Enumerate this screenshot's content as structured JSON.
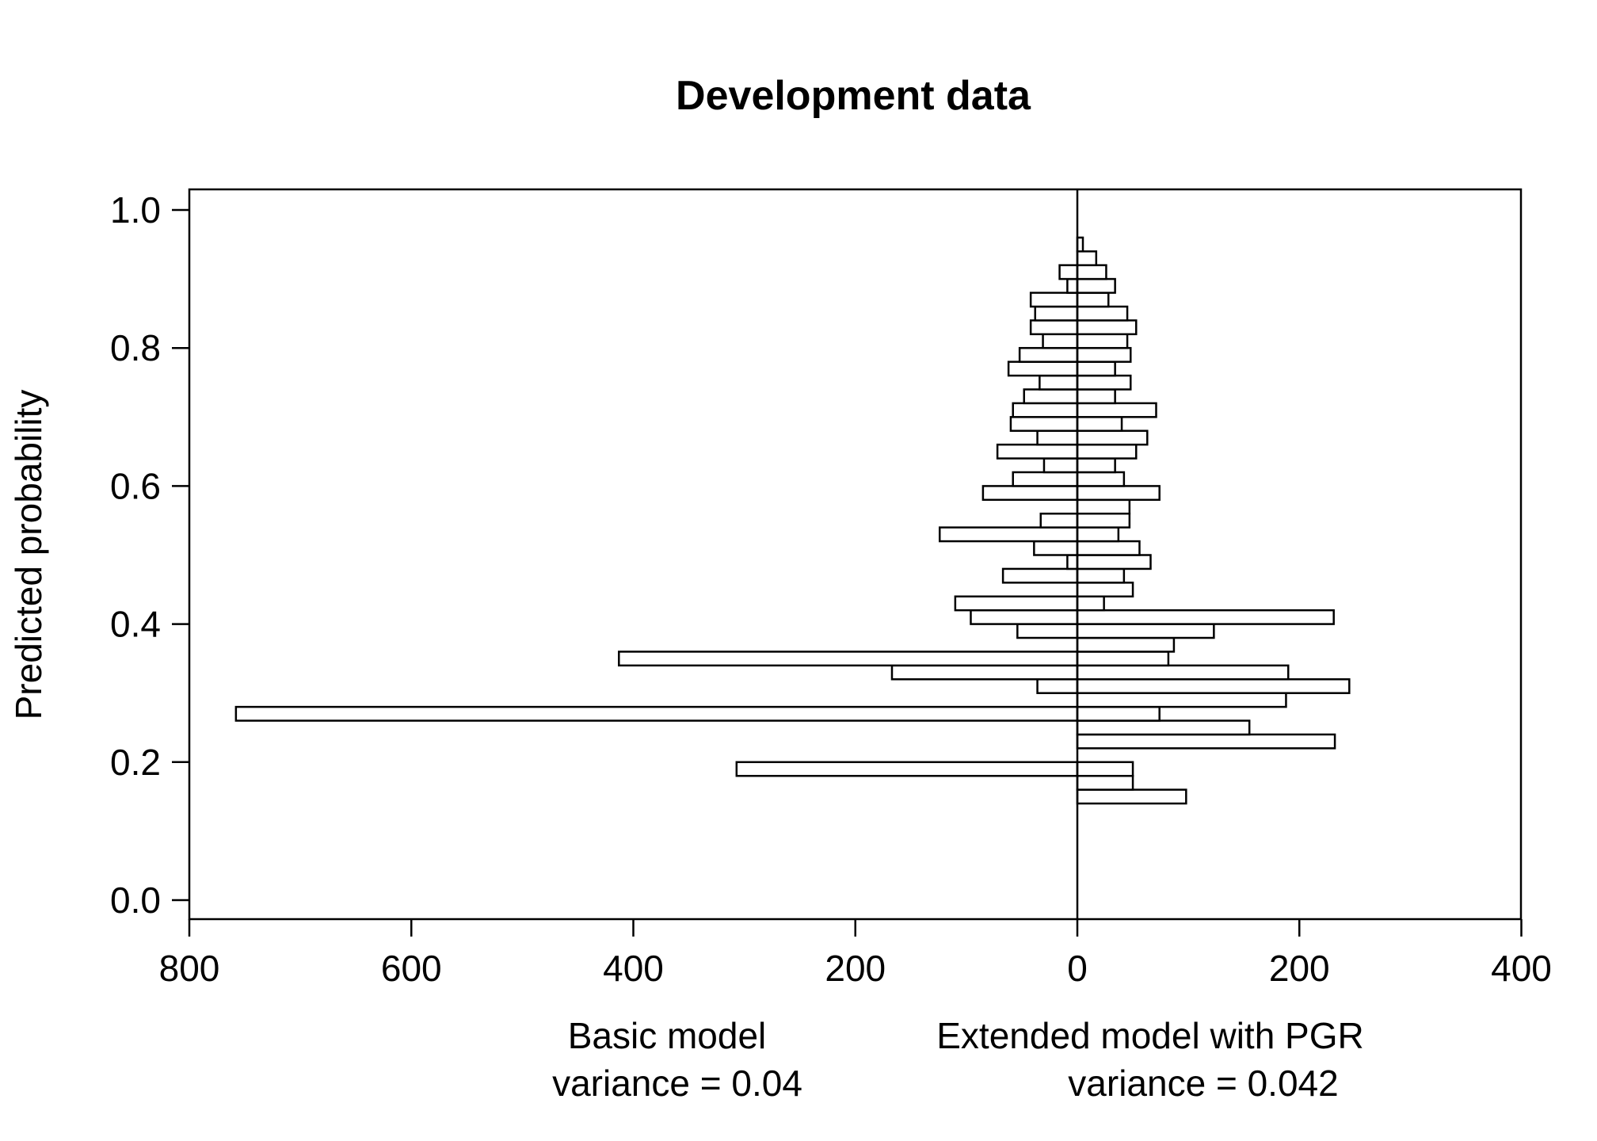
{
  "chart_data": {
    "type": "bar",
    "orientation": "back-to-back horizontal",
    "title": "Development data",
    "ylabel": "Predicted probability",
    "ylim": [
      0.0,
      1.0
    ],
    "y_ticks": [
      "0.0",
      "0.2",
      "0.4",
      "0.6",
      "0.8",
      "1.0"
    ],
    "x_ticks_left": [
      "800",
      "600",
      "400",
      "200",
      "0"
    ],
    "x_ticks_right": [
      "200",
      "400"
    ],
    "xlim_left": [
      0,
      800
    ],
    "xlim_right": [
      0,
      400
    ],
    "bin_width": 0.02,
    "left": {
      "label": "Basic model",
      "note": "variance = 0.04",
      "bins": [
        {
          "y0": 0.18,
          "value": 307
        },
        {
          "y0": 0.26,
          "value": 758
        },
        {
          "y0": 0.3,
          "value": 36
        },
        {
          "y0": 0.32,
          "value": 167
        },
        {
          "y0": 0.34,
          "value": 413
        },
        {
          "y0": 0.38,
          "value": 54
        },
        {
          "y0": 0.4,
          "value": 96
        },
        {
          "y0": 0.42,
          "value": 110
        },
        {
          "y0": 0.46,
          "value": 67
        },
        {
          "y0": 0.48,
          "value": 9
        },
        {
          "y0": 0.5,
          "value": 39
        },
        {
          "y0": 0.52,
          "value": 124
        },
        {
          "y0": 0.54,
          "value": 33
        },
        {
          "y0": 0.58,
          "value": 85
        },
        {
          "y0": 0.6,
          "value": 58
        },
        {
          "y0": 0.62,
          "value": 30
        },
        {
          "y0": 0.64,
          "value": 72
        },
        {
          "y0": 0.66,
          "value": 36
        },
        {
          "y0": 0.68,
          "value": 60
        },
        {
          "y0": 0.7,
          "value": 58
        },
        {
          "y0": 0.72,
          "value": 48
        },
        {
          "y0": 0.74,
          "value": 34
        },
        {
          "y0": 0.76,
          "value": 62
        },
        {
          "y0": 0.78,
          "value": 52
        },
        {
          "y0": 0.8,
          "value": 31
        },
        {
          "y0": 0.82,
          "value": 42
        },
        {
          "y0": 0.84,
          "value": 38
        },
        {
          "y0": 0.86,
          "value": 42
        },
        {
          "y0": 0.88,
          "value": 9
        },
        {
          "y0": 0.9,
          "value": 16
        }
      ]
    },
    "right": {
      "label": "Extended model with PGR",
      "note": "variance = 0.042",
      "bins": [
        {
          "y0": 0.14,
          "value": 98
        },
        {
          "y0": 0.16,
          "value": 50
        },
        {
          "y0": 0.18,
          "value": 50
        },
        {
          "y0": 0.22,
          "value": 232
        },
        {
          "y0": 0.24,
          "value": 155
        },
        {
          "y0": 0.26,
          "value": 74
        },
        {
          "y0": 0.28,
          "value": 188
        },
        {
          "y0": 0.3,
          "value": 245
        },
        {
          "y0": 0.32,
          "value": 190
        },
        {
          "y0": 0.34,
          "value": 82
        },
        {
          "y0": 0.36,
          "value": 87
        },
        {
          "y0": 0.38,
          "value": 123
        },
        {
          "y0": 0.4,
          "value": 231
        },
        {
          "y0": 0.42,
          "value": 24
        },
        {
          "y0": 0.44,
          "value": 50
        },
        {
          "y0": 0.46,
          "value": 42
        },
        {
          "y0": 0.48,
          "value": 66
        },
        {
          "y0": 0.5,
          "value": 56
        },
        {
          "y0": 0.52,
          "value": 37
        },
        {
          "y0": 0.54,
          "value": 47
        },
        {
          "y0": 0.56,
          "value": 47
        },
        {
          "y0": 0.58,
          "value": 74
        },
        {
          "y0": 0.6,
          "value": 42
        },
        {
          "y0": 0.62,
          "value": 34
        },
        {
          "y0": 0.64,
          "value": 53
        },
        {
          "y0": 0.66,
          "value": 63
        },
        {
          "y0": 0.68,
          "value": 40
        },
        {
          "y0": 0.7,
          "value": 71
        },
        {
          "y0": 0.72,
          "value": 34
        },
        {
          "y0": 0.74,
          "value": 48
        },
        {
          "y0": 0.76,
          "value": 34
        },
        {
          "y0": 0.78,
          "value": 48
        },
        {
          "y0": 0.8,
          "value": 45
        },
        {
          "y0": 0.82,
          "value": 53
        },
        {
          "y0": 0.84,
          "value": 45
        },
        {
          "y0": 0.86,
          "value": 28
        },
        {
          "y0": 0.88,
          "value": 34
        },
        {
          "y0": 0.9,
          "value": 26
        },
        {
          "y0": 0.92,
          "value": 17
        },
        {
          "y0": 0.94,
          "value": 5
        }
      ]
    }
  }
}
